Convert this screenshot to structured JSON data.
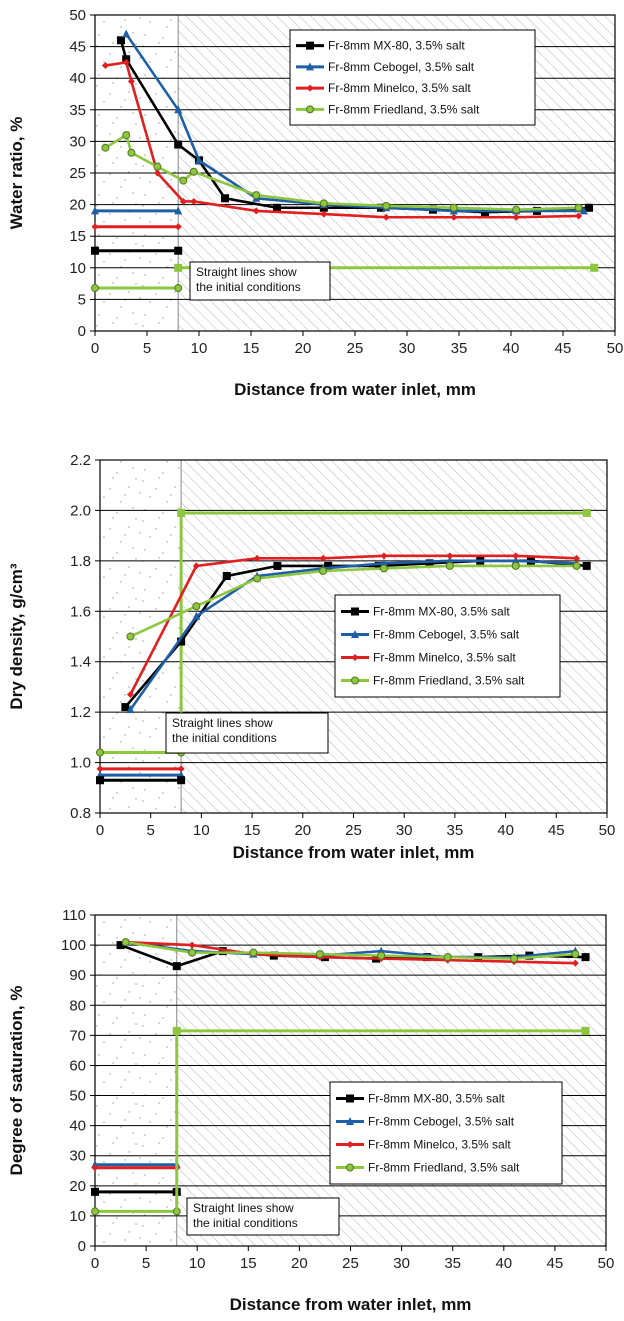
{
  "colors": {
    "mx80": "#000000",
    "cebogel": "#1f5fa6",
    "minelco": "#e02020",
    "friedland": "#8dc63f",
    "grid": "#000000",
    "hatch": "#b8b8b8",
    "speckle": "#9a9a9a"
  },
  "chart_data": [
    {
      "type": "line",
      "xlabel": "Distance from water inlet, mm",
      "ylabel": "Water ratio, %",
      "xlim": [
        0,
        50
      ],
      "ylim": [
        0,
        50
      ],
      "xticks": [
        "0",
        "5",
        "10",
        "15",
        "20",
        "25",
        "30",
        "35",
        "40",
        "45",
        "50"
      ],
      "yticks": [
        "0",
        "5",
        "10",
        "15",
        "20",
        "25",
        "30",
        "35",
        "40",
        "45",
        "50"
      ],
      "grid": "horizontal",
      "legend_position": "top-right",
      "note": [
        "Straight lines show",
        "the initial conditions"
      ],
      "series": [
        {
          "name": "Fr-8mm MX-80, 3.5% salt",
          "color_key": "mx80",
          "marker": "square",
          "x": [
            2.5,
            3,
            8,
            10,
            12.5,
            17.5,
            22,
            27.5,
            32.5,
            37.5,
            42.5,
            47.5
          ],
          "y": [
            46,
            43,
            29.5,
            27,
            21,
            19.5,
            19.5,
            19.5,
            19.2,
            18.8,
            19,
            19.5
          ]
        },
        {
          "name": "Fr-8mm Cebogel, 3.5% salt",
          "color_key": "cebogel",
          "marker": "triangle",
          "x": [
            3,
            8,
            10,
            15.5,
            22,
            28,
            34.5,
            40.5,
            47
          ],
          "y": [
            47,
            35,
            27,
            21,
            20,
            19.5,
            19,
            19,
            19
          ]
        },
        {
          "name": "Fr-8mm Minelco, 3.5% salt",
          "color_key": "minelco",
          "marker": "diamond",
          "x": [
            1,
            3,
            3.5,
            6,
            8.5,
            9.5,
            15.5,
            22,
            28,
            34.5,
            40.5,
            46.5
          ],
          "y": [
            42,
            42.5,
            39.5,
            25,
            20.5,
            20.5,
            19,
            18.5,
            18,
            18,
            18,
            18.2
          ]
        },
        {
          "name": "Fr-8mm Friedland, 3.5% salt",
          "color_key": "friedland",
          "marker": "circle",
          "x": [
            1,
            3,
            3.5,
            6,
            8.5,
            9.5,
            15.5,
            22,
            28,
            34.5,
            40.5,
            46.5
          ],
          "y": [
            29,
            31,
            28.2,
            26,
            23.8,
            25.2,
            21.5,
            20.2,
            19.8,
            19.5,
            19.2,
            19.5
          ]
        }
      ],
      "initial_lines": [
        {
          "color_key": "cebogel",
          "marker": "triangle",
          "x": [
            0,
            8
          ],
          "y": [
            19,
            19
          ]
        },
        {
          "color_key": "minelco",
          "marker": "diamond",
          "x": [
            0,
            8
          ],
          "y": [
            16.5,
            16.5
          ]
        },
        {
          "color_key": "mx80",
          "marker": "square",
          "x": [
            0,
            8
          ],
          "y": [
            12.7,
            12.7
          ]
        },
        {
          "color_key": "friedland",
          "marker": "circle",
          "x": [
            0,
            8
          ],
          "y": [
            6.8,
            6.8
          ]
        },
        {
          "color_key": "friedland",
          "marker": "square",
          "x": [
            8,
            48
          ],
          "y": [
            10,
            10
          ]
        }
      ]
    },
    {
      "type": "line",
      "xlabel": "Distance from water inlet, mm",
      "ylabel": "Dry density, g/cm³",
      "xlim": [
        0,
        50
      ],
      "ylim": [
        0.8,
        2.2
      ],
      "xticks": [
        "0",
        "5",
        "10",
        "15",
        "20",
        "25",
        "30",
        "35",
        "40",
        "45",
        "50"
      ],
      "yticks": [
        "0.8",
        "1.0",
        "1.2",
        "1.4",
        "1.6",
        "1.8",
        "2.0",
        "2.2"
      ],
      "grid": "horizontal",
      "legend_position": "center-right",
      "note": [
        "Straight lines show",
        "the initial conditions"
      ],
      "series": [
        {
          "name": "Fr-8mm MX-80, 3.5% salt",
          "color_key": "mx80",
          "marker": "square",
          "x": [
            2.5,
            8,
            12.5,
            17.5,
            22.5,
            27.5,
            32.5,
            37.5,
            42.5,
            48
          ],
          "y": [
            1.22,
            1.48,
            1.74,
            1.78,
            1.78,
            1.78,
            1.79,
            1.8,
            1.8,
            1.78
          ]
        },
        {
          "name": "Fr-8mm Cebogel, 3.5% salt",
          "color_key": "cebogel",
          "marker": "triangle",
          "x": [
            3,
            9.5,
            15.5,
            22,
            28,
            34.5,
            41,
            47
          ],
          "y": [
            1.21,
            1.58,
            1.74,
            1.77,
            1.79,
            1.8,
            1.8,
            1.79
          ]
        },
        {
          "name": "Fr-8mm Minelco, 3.5% salt",
          "color_key": "minelco",
          "marker": "diamond",
          "x": [
            3,
            9.5,
            15.5,
            22,
            28,
            34.5,
            41,
            47
          ],
          "y": [
            1.27,
            1.78,
            1.81,
            1.81,
            1.82,
            1.82,
            1.82,
            1.81
          ]
        },
        {
          "name": "Fr-8mm Friedland, 3.5% salt",
          "color_key": "friedland",
          "marker": "circle",
          "x": [
            3,
            9.5,
            15.5,
            22,
            28,
            34.5,
            41,
            47
          ],
          "y": [
            1.5,
            1.62,
            1.73,
            1.76,
            1.77,
            1.78,
            1.78,
            1.78
          ]
        }
      ],
      "initial_lines": [
        {
          "color_key": "friedland",
          "marker": "circle",
          "x": [
            0,
            8
          ],
          "y": [
            1.04,
            1.04
          ]
        },
        {
          "color_key": "minelco",
          "marker": "diamond",
          "x": [
            0,
            8
          ],
          "y": [
            0.975,
            0.975
          ]
        },
        {
          "color_key": "cebogel",
          "marker": "triangle",
          "x": [
            0,
            8
          ],
          "y": [
            0.95,
            0.95
          ]
        },
        {
          "color_key": "mx80",
          "marker": "square",
          "x": [
            0,
            8
          ],
          "y": [
            0.93,
            0.93
          ]
        },
        {
          "color_key": "friedland",
          "marker": "none",
          "x": [
            8,
            8
          ],
          "y": [
            1.04,
            1.99
          ]
        },
        {
          "color_key": "friedland",
          "marker": "square",
          "x": [
            8,
            48
          ],
          "y": [
            1.99,
            1.99
          ]
        }
      ]
    },
    {
      "type": "line",
      "xlabel": "Distance from water inlet, mm",
      "ylabel": "Degree of saturation, %",
      "xlim": [
        0,
        50
      ],
      "ylim": [
        0,
        110
      ],
      "xticks": [
        "0",
        "5",
        "10",
        "15",
        "20",
        "25",
        "30",
        "35",
        "40",
        "45",
        "50"
      ],
      "yticks": [
        "0",
        "10",
        "20",
        "30",
        "40",
        "50",
        "60",
        "70",
        "80",
        "90",
        "100",
        "110"
      ],
      "grid": "horizontal",
      "legend_position": "center-right",
      "note": [
        "Straight lines show",
        "the initial conditions"
      ],
      "series": [
        {
          "name": "Fr-8mm MX-80, 3.5% salt",
          "color_key": "mx80",
          "marker": "square",
          "x": [
            2.5,
            8,
            12.5,
            17.5,
            22.5,
            27.5,
            32.5,
            37.5,
            42.5,
            48
          ],
          "y": [
            100,
            93,
            98,
            96.5,
            96,
            95.5,
            96,
            96,
            96.5,
            96
          ]
        },
        {
          "name": "Fr-8mm Cebogel, 3.5% salt",
          "color_key": "cebogel",
          "marker": "triangle",
          "x": [
            3,
            9.5,
            15.5,
            22,
            28,
            34.5,
            41,
            47
          ],
          "y": [
            101,
            98,
            97,
            96.5,
            98,
            96,
            96,
            98
          ]
        },
        {
          "name": "Fr-8mm Minelco, 3.5% salt",
          "color_key": "minelco",
          "marker": "diamond",
          "x": [
            3,
            9.5,
            15.5,
            22,
            28,
            34.5,
            41,
            47
          ],
          "y": [
            101,
            100,
            97,
            96,
            95.5,
            95,
            94.5,
            94
          ]
        },
        {
          "name": "Fr-8mm Friedland, 3.5% salt",
          "color_key": "friedland",
          "marker": "circle",
          "x": [
            3,
            9.5,
            15.5,
            22,
            28,
            34.5,
            41,
            47
          ],
          "y": [
            101,
            97.5,
            97.5,
            97,
            96.5,
            96,
            95.5,
            97
          ]
        }
      ],
      "initial_lines": [
        {
          "color_key": "cebogel",
          "marker": "triangle",
          "x": [
            0,
            8
          ],
          "y": [
            27,
            27
          ]
        },
        {
          "color_key": "minelco",
          "marker": "diamond",
          "x": [
            0,
            8
          ],
          "y": [
            26,
            26
          ]
        },
        {
          "color_key": "mx80",
          "marker": "square",
          "x": [
            0,
            8
          ],
          "y": [
            18,
            18
          ]
        },
        {
          "color_key": "friedland",
          "marker": "circle",
          "x": [
            0,
            8
          ],
          "y": [
            11.5,
            11.5
          ]
        },
        {
          "color_key": "friedland",
          "marker": "none",
          "x": [
            8,
            8
          ],
          "y": [
            11.5,
            71.5
          ]
        },
        {
          "color_key": "friedland",
          "marker": "square",
          "x": [
            8,
            48
          ],
          "y": [
            71.5,
            71.5
          ]
        }
      ]
    }
  ]
}
